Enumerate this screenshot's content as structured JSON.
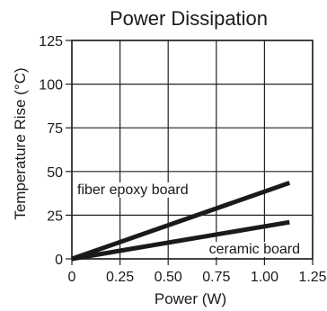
{
  "chart_data": {
    "type": "line",
    "title": "Power Dissipation",
    "xlabel": "Power (W)",
    "ylabel": "Temperature Rise (°C)",
    "xlim": [
      0,
      1.25
    ],
    "ylim": [
      0,
      125
    ],
    "xticks": [
      0,
      0.25,
      0.5,
      0.75,
      1.0,
      1.25
    ],
    "xtick_labels": [
      "0",
      "0.25",
      "0.50",
      "0.75",
      "1.00",
      "1.25"
    ],
    "yticks": [
      0,
      25,
      50,
      75,
      100,
      125
    ],
    "ytick_labels": [
      "0",
      "25",
      "50",
      "75",
      "100",
      "125"
    ],
    "grid": true,
    "legend": "none",
    "series": [
      {
        "name": "fiber epoxy board",
        "x": [
          0,
          1.13
        ],
        "y": [
          0,
          43.5
        ],
        "color": "#1a1a1a"
      },
      {
        "name": "ceramic board",
        "x": [
          0,
          1.13
        ],
        "y": [
          0,
          21
        ],
        "color": "#1a1a1a"
      }
    ]
  }
}
